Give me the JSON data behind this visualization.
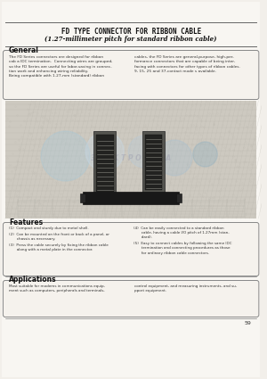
{
  "title_line1": "FD TYPE CONNECTOR FOR RIBBON CABLE",
  "title_line2": "(1.27-millimeter pitch for standard ribbon cable)",
  "general_title": "General",
  "general_text_left": "The FD Series connectors are designed for ribbon\ncab a IDC termination.  Connecting wires are grouped,\nso the FD Series are useful for labor-saving in connec-\ntion work and enhancing wiring reliability.\nBeing compatible with 1.27-mm (standard) ribbon",
  "general_text_right": "cables, the FD Series are general-purpose, high-per-\nformance connectors that are capable of being inter-\nfacing with connectors for other types of ribbon cables.\n9, 15, 25 and 37-contact mode s available.",
  "features_title": "Features",
  "features_items_left": [
    "(1)  Compact and sturdy due to metal shell.",
    "(2)  Can be mounted on the front or back of a panel, or\n       chassis as necessary.",
    "(3)  Press the cable securely by fixing the ribbon cable\n       along with a metal plate in the connector."
  ],
  "features_items_right": [
    "(4)  Can be easily connected to a standard ribbon\n       cable, having a cable I/O pitch of 1.27mm (stan-\n       dard).",
    "(5)  Easy to connect cables by following the same IDC\n       termination and connecting procedures as those\n       for ordinary ribbon cable connectors."
  ],
  "applications_title": "Applications",
  "applications_text_left": "Most suitable for modems in communications equip-\nment such as computers, peripherals and terminals,",
  "applications_text_right": "control equipment, and measuring instruments, and su-\npport equipment.",
  "page_number": "59",
  "bg_color": "#f2efea",
  "title_line1_color": "#111111",
  "title_line2_color": "#111111",
  "text_color": "#333333",
  "box_edge_color": "#888888",
  "line_color": "#666666"
}
